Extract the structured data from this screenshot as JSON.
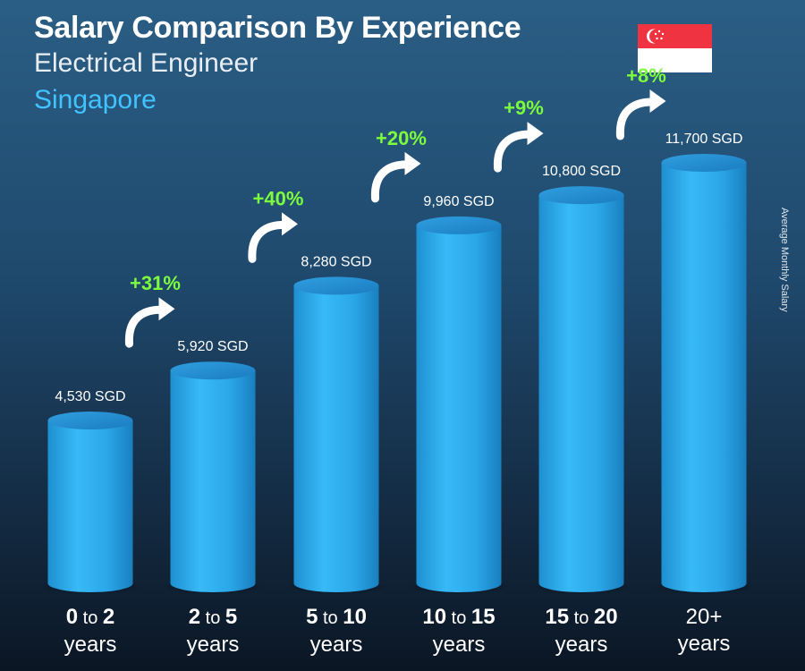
{
  "header": {
    "title": "Salary Comparison By Experience",
    "subtitle": "Electrical Engineer",
    "location": "Singapore"
  },
  "side_label": "Average Monthly Salary",
  "flag": {
    "country": "Singapore",
    "colors": [
      "#ef3340",
      "#ffffff"
    ]
  },
  "colors": {
    "bar": "#2fb4f4",
    "percent": "#7cfc3c",
    "location": "#41c3ff"
  },
  "chart_data": {
    "type": "bar",
    "categories": [
      "0 to 2 years",
      "2 to 5 years",
      "5 to 10 years",
      "10 to 15 years",
      "15 to 20 years",
      "20+ years"
    ],
    "category_labels": [
      {
        "from": "0",
        "to": "to",
        "upto": "2",
        "unit": "years"
      },
      {
        "from": "2",
        "to": "to",
        "upto": "5",
        "unit": "years"
      },
      {
        "from": "5",
        "to": "to",
        "upto": "10",
        "unit": "years"
      },
      {
        "from": "10",
        "to": "to",
        "upto": "15",
        "unit": "years"
      },
      {
        "from": "15",
        "to": "to",
        "upto": "20",
        "unit": "years"
      },
      {
        "from": "20+",
        "to": "",
        "upto": "",
        "unit": "years"
      }
    ],
    "values": [
      4530,
      5920,
      8280,
      9960,
      10800,
      11700
    ],
    "value_labels": [
      "4,530 SGD",
      "5,920 SGD",
      "8,280 SGD",
      "9,960 SGD",
      "10,800 SGD",
      "11,700 SGD"
    ],
    "increases": [
      "+31%",
      "+40%",
      "+20%",
      "+9%",
      "+8%"
    ],
    "ylabel": "Average Monthly Salary",
    "unit": "SGD"
  }
}
